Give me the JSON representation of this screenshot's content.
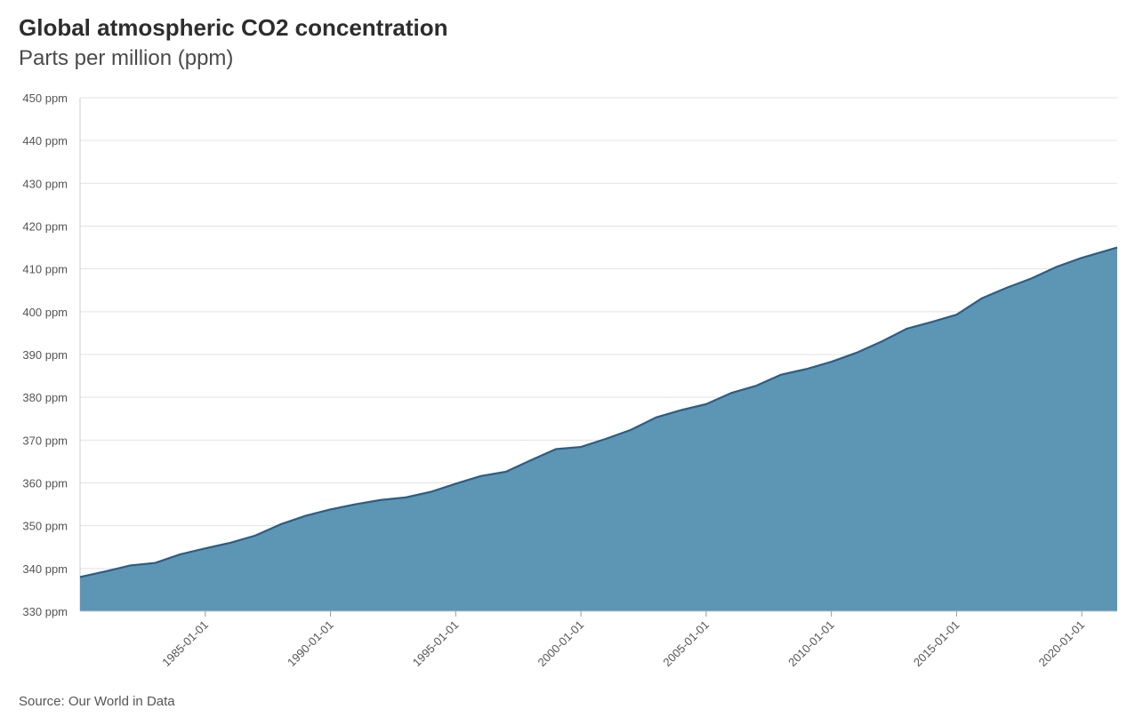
{
  "title": "Global atmospheric CO2 concentration",
  "subtitle": "Parts per million (ppm)",
  "source": "Source: Our World in Data",
  "colors": {
    "area_fill": "#5d95b5",
    "line": "#2f5d80",
    "grid": "#e3e3e3",
    "axis": "#cccccc"
  },
  "chart_data": {
    "type": "area",
    "title": "Global atmospheric CO2 concentration",
    "subtitle": "Parts per million (ppm)",
    "xlabel": "",
    "ylabel": "",
    "y_unit": "ppm",
    "ylim": [
      330,
      450
    ],
    "xlim": [
      "1980-01-01",
      "2021-06-01"
    ],
    "y_ticks": [
      "330 ppm",
      "340 ppm",
      "350 ppm",
      "360 ppm",
      "370 ppm",
      "380 ppm",
      "390 ppm",
      "400 ppm",
      "410 ppm",
      "420 ppm",
      "430 ppm",
      "440 ppm",
      "450 ppm"
    ],
    "x_ticks": [
      "1985-01-01",
      "1990-01-01",
      "1995-01-01",
      "2000-01-01",
      "2005-01-01",
      "2010-01-01",
      "2015-01-01",
      "2020-01-01"
    ],
    "grid": true,
    "legend": "none",
    "series": [
      {
        "x": [
          "1980-01-01",
          "1981-01-01",
          "1982-01-01",
          "1983-01-01",
          "1984-01-01",
          "1985-01-01",
          "1986-01-01",
          "1987-01-01",
          "1988-01-01",
          "1989-01-01",
          "1990-01-01",
          "1991-01-01",
          "1992-01-01",
          "1993-01-01",
          "1994-01-01",
          "1995-01-01",
          "1996-01-01",
          "1997-01-01",
          "1998-01-01",
          "1999-01-01",
          "2000-01-01",
          "2001-01-01",
          "2002-01-01",
          "2003-01-01",
          "2004-01-01",
          "2005-01-01",
          "2006-01-01",
          "2007-01-01",
          "2008-01-01",
          "2009-01-01",
          "2010-01-01",
          "2011-01-01",
          "2012-01-01",
          "2013-01-01",
          "2014-01-01",
          "2015-01-01",
          "2016-01-01",
          "2017-01-01",
          "2018-01-01",
          "2019-01-01",
          "2020-01-01",
          "2021-06-01"
        ],
        "values": [
          338.0,
          339.3,
          340.7,
          341.3,
          343.3,
          344.7,
          346.0,
          347.7,
          350.3,
          352.3,
          353.8,
          355.0,
          356.0,
          356.6,
          357.9,
          359.8,
          361.6,
          362.6,
          365.3,
          367.9,
          368.4,
          370.3,
          372.4,
          375.3,
          377.0,
          378.4,
          381.0,
          382.7,
          385.3,
          386.6,
          388.3,
          390.4,
          393.0,
          396.0,
          397.6,
          399.3,
          403.1,
          405.6,
          407.8,
          410.5,
          412.6,
          415.0
        ]
      }
    ]
  }
}
